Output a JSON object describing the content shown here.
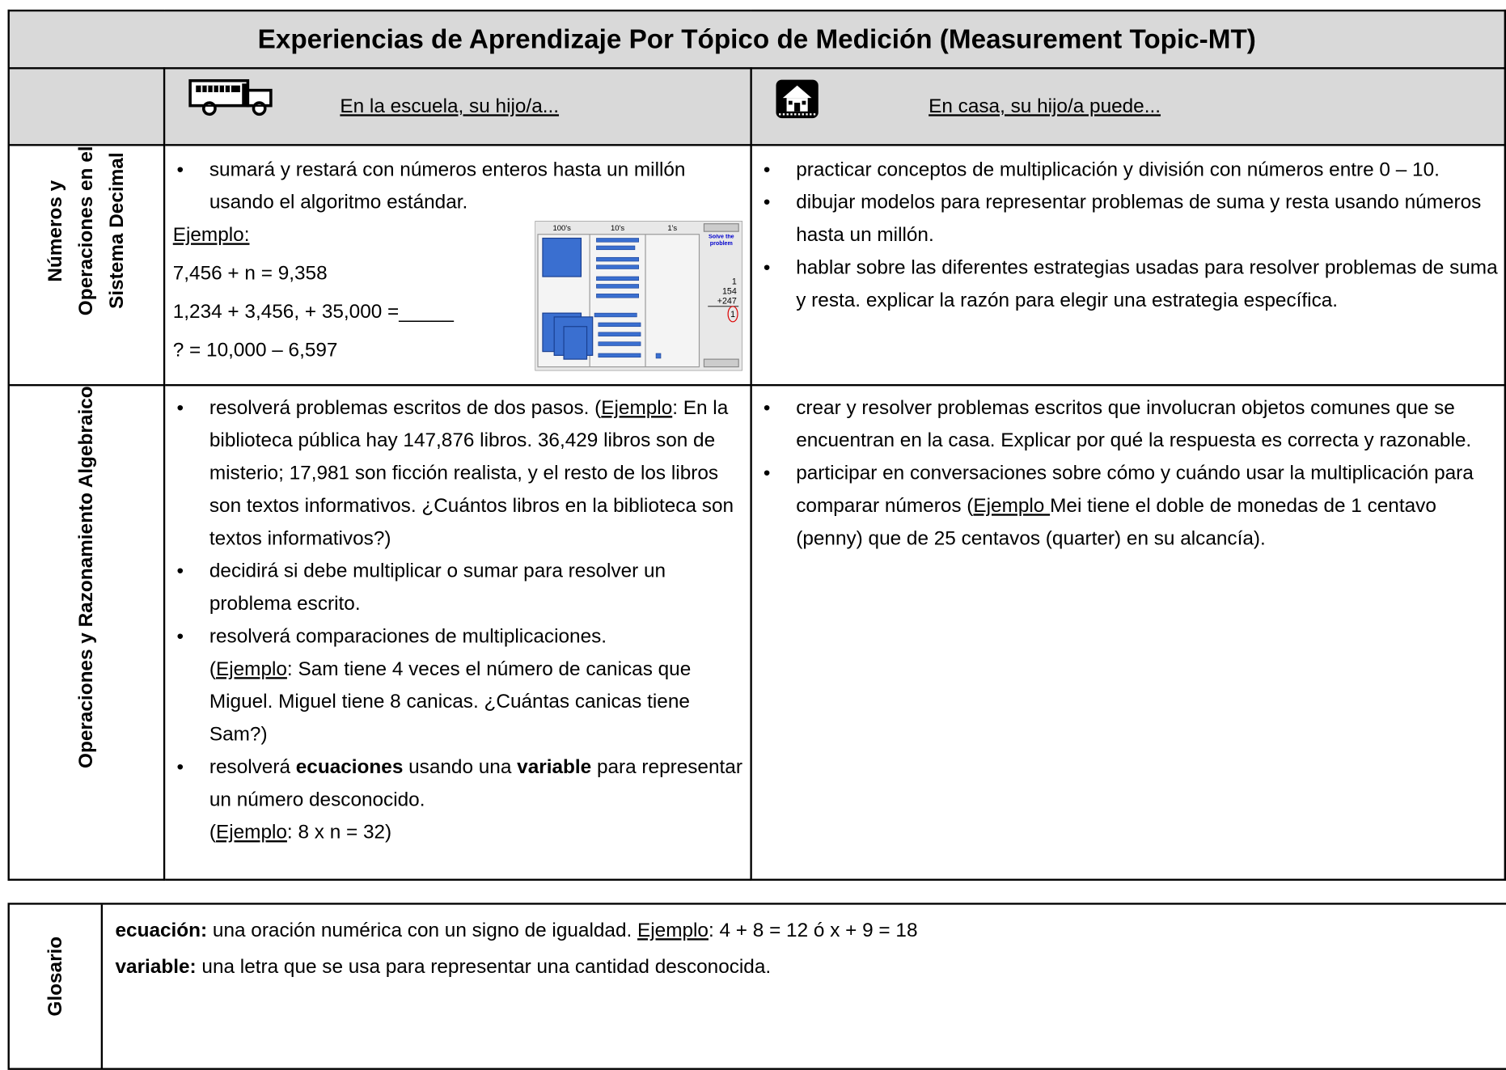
{
  "title": "Experiencias de Aprendizaje Por Tópico de Medición (Measurement Topic-MT)",
  "columns": {
    "school": "En la escuela, su hijo/a...",
    "home": "En casa, su hijo/a puede..."
  },
  "rows": [
    {
      "label": [
        "Números y",
        "Operaciones en el",
        "Sistema Decimal"
      ],
      "school": {
        "items": [
          [
            "sumará y restará con números enteros hasta un millón usando el algoritmo estándar."
          ]
        ],
        "example_heading": "Ejemplo:",
        "examples": [
          "7,456 + n = 9,358",
          "1,234 + 3,456, + 35,000 =_____",
          "? = 10,000 – 6,597"
        ],
        "image_labels": [
          "100's",
          "10's",
          "1's",
          "Solve the problem",
          "1",
          "154",
          "+247",
          "1"
        ]
      },
      "home": {
        "items": [
          [
            "practicar conceptos de multiplicación y división con números entre 0 – 10."
          ],
          [
            "dibujar modelos para representar problemas de suma y resta usando números hasta un millón."
          ],
          [
            "hablar sobre las diferentes estrategias usadas para resolver problemas de suma y resta. explicar la razón para elegir una estrategia específica."
          ]
        ]
      }
    },
    {
      "label": [
        "Operaciones y Razonamiento Algebraico"
      ],
      "school": {
        "items": [
          [
            "resolverá problemas escritos de dos pasos. (",
            "Ejemplo",
            ": En la biblioteca pública hay 147,876 libros.  36,429 libros son de misterio; 17,981 son ficción realista, y el resto de los libros son textos informativos.  ¿Cuántos libros en la biblioteca son textos informativos?)"
          ],
          [
            "decidirá si debe multiplicar o sumar para resolver un problema escrito."
          ],
          [
            "resolverá comparaciones de multiplicaciones.",
            "(",
            "Ejemplo",
            ": Sam tiene 4 veces el número de canicas que Miguel.  Miguel tiene 8 canicas.  ¿Cuántas canicas tiene Sam?)"
          ],
          [
            "resolverá ",
            "ecuaciones",
            " usando una ",
            "variable",
            " para representar un número desconocido.",
            "(",
            "Ejemplo",
            ": 8 x n = 32)"
          ]
        ]
      },
      "home": {
        "items": [
          [
            "crear y resolver problemas escritos que involucran objetos comunes que se encuentran en la casa. Explicar por qué la respuesta es correcta y razonable."
          ],
          [
            "participar en conversaciones sobre cómo y cuándo usar la multiplicación para comparar números (",
            "Ejemplo ",
            "Mei tiene el doble de monedas de 1 centavo (penny) que de 25 centavos (quarter) en su alcancía)."
          ]
        ]
      }
    }
  ],
  "glossary": {
    "label": "Glosario",
    "entries": [
      [
        "ecuación:",
        " una oración numérica con un signo de igualdad. ",
        "Ejemplo",
        ": 4 + 8 = 12 ó x + 9 = 18"
      ],
      [
        "variable:",
        " una letra que se usa para representar una cantidad desconocida."
      ]
    ]
  }
}
